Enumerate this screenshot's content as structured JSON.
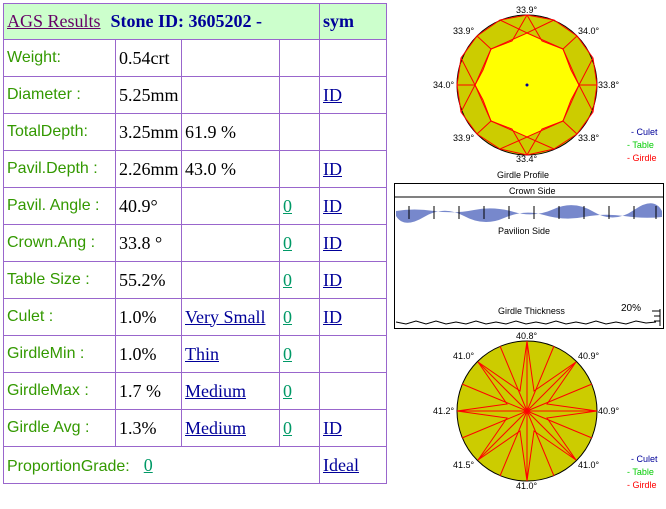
{
  "header": {
    "title": "AGS  Results",
    "stone_id": "Stone ID:  3605202 -",
    "sym": "sym"
  },
  "rows": [
    {
      "label": "Weight:",
      "value": "0.54crt",
      "extra": "",
      "grade_label": "",
      "zero": "",
      "id": ""
    },
    {
      "label": "Diameter :",
      "value": "5.25mm",
      "extra": "",
      "grade_label": "",
      "zero": "",
      "id": "ID"
    },
    {
      "label": "TotalDepth:",
      "value": "3.25mm",
      "extra": "61.9 %",
      "grade_label": "",
      "zero": "",
      "id": ""
    },
    {
      "label": "Pavil.Depth :",
      "value": "2.26mm",
      "extra": "43.0 %",
      "grade_label": "",
      "zero": "",
      "id": "ID"
    },
    {
      "label": "Pavil. Angle :",
      "value": "40.9°",
      "extra": "",
      "grade_label": "",
      "zero": "0",
      "id": "ID"
    },
    {
      "label": "Crown.Ang :",
      "value": "33.8 °",
      "extra": "",
      "grade_label": "",
      "zero": "0",
      "id": "ID"
    },
    {
      "label": "Table Size :",
      "value": "55.2%",
      "extra": "",
      "grade_label": "",
      "zero": "0",
      "id": "ID"
    },
    {
      "label": "Culet :",
      "value": "1.0%",
      "extra": "",
      "grade_label": "Very Small",
      "zero": "0",
      "id": "ID"
    },
    {
      "label": "GirdleMin :",
      "value": "1.0%",
      "extra": "",
      "grade_label": "Thin",
      "zero": "0",
      "id": ""
    },
    {
      "label": "GirdleMax :",
      "value": "1.7 %",
      "extra": "",
      "grade_label": "Medium",
      "zero": "0",
      "id": ""
    },
    {
      "label": "Girdle Avg :",
      "value": "1.3%",
      "extra": "",
      "grade_label": "Medium",
      "zero": "0",
      "id": "ID"
    }
  ],
  "proportion": {
    "label": "ProportionGrade:",
    "value": "0",
    "grade": "Ideal"
  },
  "crown_diagram": {
    "angles": {
      "top": "33.9°",
      "top_left": "33.9°",
      "top_right": "34.0°",
      "left": "34.0°",
      "right": "33.8°",
      "bottom_left": "33.9°",
      "bottom_right": "33.8°",
      "bottom": "33.4°"
    },
    "caption": "Girdle Profile",
    "legend": [
      "- Culet",
      "- Table",
      "- Girdle"
    ],
    "colors": {
      "facet": "#cccc00",
      "table": "#ffff00",
      "line": "#ff0000",
      "culet": "#000099",
      "table_legend": "#00cc00",
      "girdle_legend": "#ff0000"
    }
  },
  "profile": {
    "crown_label": "Crown Side",
    "pavilion_label": "Pavilion Side",
    "thickness_label": "Girdle Thickness",
    "percent": "20%",
    "colors": {
      "band": "#7788cc"
    }
  },
  "pavilion_diagram": {
    "angles": {
      "top": "40.8°",
      "top_left": "41.0°",
      "top_right": "40.9°",
      "left": "41.2°",
      "right": "40.9°",
      "bottom_left": "41.5°",
      "bottom_right": "41.0°",
      "bottom": "41.0°"
    },
    "legend": [
      "- Culet",
      "- Table",
      "- Girdle"
    ]
  }
}
